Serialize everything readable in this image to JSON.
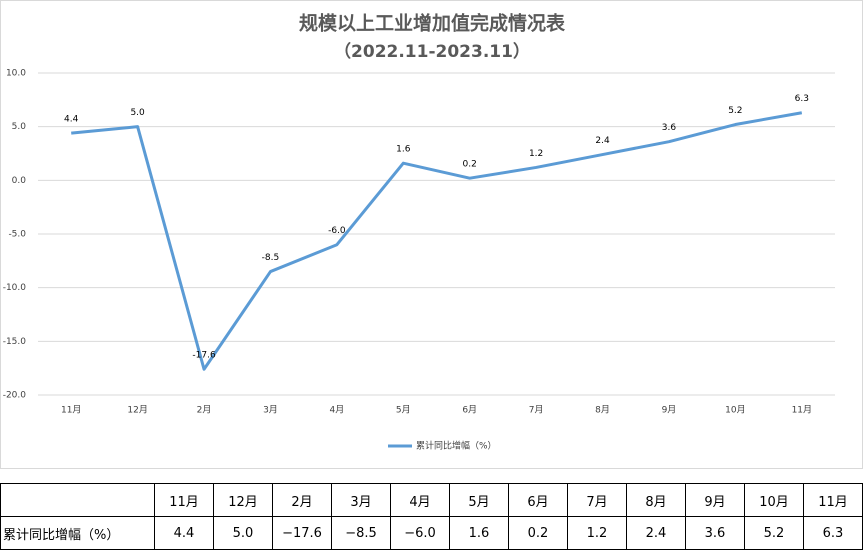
{
  "chart_data": {
    "type": "line",
    "title": "规模以上工业增加值完成情况表",
    "subtitle": "（2022.11-2023.11）",
    "categories": [
      "11月",
      "12月",
      "2月",
      "3月",
      "4月",
      "5月",
      "6月",
      "7月",
      "8月",
      "9月",
      "10月",
      "11月"
    ],
    "series": [
      {
        "name": "累计同比增幅（%）",
        "color": "#5b9bd5",
        "values": [
          4.4,
          5.0,
          -17.6,
          -8.5,
          -6.0,
          1.6,
          0.2,
          1.2,
          2.4,
          3.6,
          5.2,
          6.3
        ],
        "value_labels": [
          "4.4",
          "5.0",
          "-17.6",
          "-8.5",
          "-6.0",
          "1.6",
          "0.2",
          "1.2",
          "2.4",
          "3.6",
          "5.2",
          "6.3"
        ]
      }
    ],
    "ylim": [
      -20,
      10
    ],
    "yticks": [
      {
        "value": -20,
        "label": "-20.0"
      },
      {
        "value": -15,
        "label": "-15.0"
      },
      {
        "value": -10,
        "label": "-10.0"
      },
      {
        "value": -5,
        "label": "-5.0"
      },
      {
        "value": 0,
        "label": "0.0"
      },
      {
        "value": 5,
        "label": "5.0"
      },
      {
        "value": 10,
        "label": "10.0"
      }
    ],
    "grid": true,
    "legend": "bottom"
  },
  "table": {
    "header": [
      "11月",
      "12月",
      "2月",
      "3月",
      "4月",
      "5月",
      "6月",
      "7月",
      "8月",
      "9月",
      "10月",
      "11月"
    ],
    "row_label": "累计同比增幅（%）",
    "cells": [
      "4.4",
      "5.0",
      "−17.6",
      "−8.5",
      "−6.0",
      "1.6",
      "0.2",
      "1.2",
      "2.4",
      "3.6",
      "5.2",
      "6.3"
    ]
  }
}
